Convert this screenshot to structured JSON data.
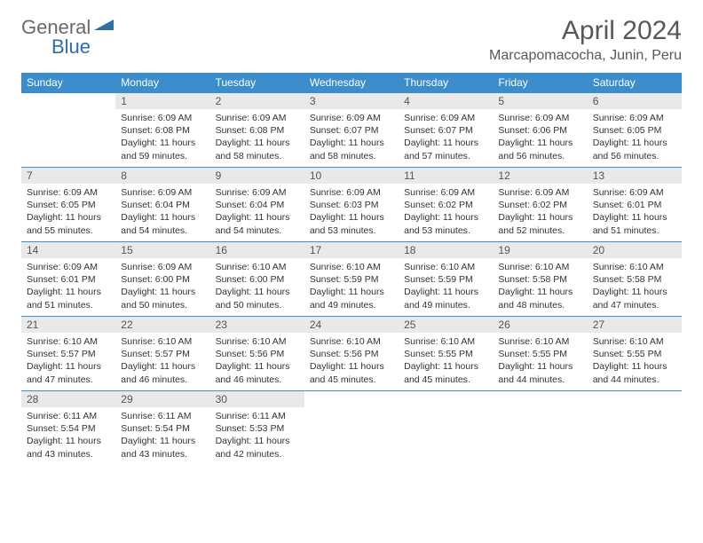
{
  "logo": {
    "text1": "General",
    "text2": "Blue"
  },
  "title": "April 2024",
  "location": "Marcapomacocha, Junin, Peru",
  "colors": {
    "header_bg": "#3b8dcb",
    "header_text": "#ffffff",
    "daynum_bg": "#e9e9e9",
    "daynum_text": "#555555",
    "border": "#3b8dcb",
    "title_text": "#585858",
    "logo_general": "#6a6a6a",
    "logo_blue": "#2f6fa8"
  },
  "weekdays": [
    "Sunday",
    "Monday",
    "Tuesday",
    "Wednesday",
    "Thursday",
    "Friday",
    "Saturday"
  ],
  "weeks": [
    [
      {
        "empty": true
      },
      {
        "n": "1",
        "sr": "Sunrise: 6:09 AM",
        "ss": "Sunset: 6:08 PM",
        "dl": "Daylight: 11 hours and 59 minutes."
      },
      {
        "n": "2",
        "sr": "Sunrise: 6:09 AM",
        "ss": "Sunset: 6:08 PM",
        "dl": "Daylight: 11 hours and 58 minutes."
      },
      {
        "n": "3",
        "sr": "Sunrise: 6:09 AM",
        "ss": "Sunset: 6:07 PM",
        "dl": "Daylight: 11 hours and 58 minutes."
      },
      {
        "n": "4",
        "sr": "Sunrise: 6:09 AM",
        "ss": "Sunset: 6:07 PM",
        "dl": "Daylight: 11 hours and 57 minutes."
      },
      {
        "n": "5",
        "sr": "Sunrise: 6:09 AM",
        "ss": "Sunset: 6:06 PM",
        "dl": "Daylight: 11 hours and 56 minutes."
      },
      {
        "n": "6",
        "sr": "Sunrise: 6:09 AM",
        "ss": "Sunset: 6:05 PM",
        "dl": "Daylight: 11 hours and 56 minutes."
      }
    ],
    [
      {
        "n": "7",
        "sr": "Sunrise: 6:09 AM",
        "ss": "Sunset: 6:05 PM",
        "dl": "Daylight: 11 hours and 55 minutes."
      },
      {
        "n": "8",
        "sr": "Sunrise: 6:09 AM",
        "ss": "Sunset: 6:04 PM",
        "dl": "Daylight: 11 hours and 54 minutes."
      },
      {
        "n": "9",
        "sr": "Sunrise: 6:09 AM",
        "ss": "Sunset: 6:04 PM",
        "dl": "Daylight: 11 hours and 54 minutes."
      },
      {
        "n": "10",
        "sr": "Sunrise: 6:09 AM",
        "ss": "Sunset: 6:03 PM",
        "dl": "Daylight: 11 hours and 53 minutes."
      },
      {
        "n": "11",
        "sr": "Sunrise: 6:09 AM",
        "ss": "Sunset: 6:02 PM",
        "dl": "Daylight: 11 hours and 53 minutes."
      },
      {
        "n": "12",
        "sr": "Sunrise: 6:09 AM",
        "ss": "Sunset: 6:02 PM",
        "dl": "Daylight: 11 hours and 52 minutes."
      },
      {
        "n": "13",
        "sr": "Sunrise: 6:09 AM",
        "ss": "Sunset: 6:01 PM",
        "dl": "Daylight: 11 hours and 51 minutes."
      }
    ],
    [
      {
        "n": "14",
        "sr": "Sunrise: 6:09 AM",
        "ss": "Sunset: 6:01 PM",
        "dl": "Daylight: 11 hours and 51 minutes."
      },
      {
        "n": "15",
        "sr": "Sunrise: 6:09 AM",
        "ss": "Sunset: 6:00 PM",
        "dl": "Daylight: 11 hours and 50 minutes."
      },
      {
        "n": "16",
        "sr": "Sunrise: 6:10 AM",
        "ss": "Sunset: 6:00 PM",
        "dl": "Daylight: 11 hours and 50 minutes."
      },
      {
        "n": "17",
        "sr": "Sunrise: 6:10 AM",
        "ss": "Sunset: 5:59 PM",
        "dl": "Daylight: 11 hours and 49 minutes."
      },
      {
        "n": "18",
        "sr": "Sunrise: 6:10 AM",
        "ss": "Sunset: 5:59 PM",
        "dl": "Daylight: 11 hours and 49 minutes."
      },
      {
        "n": "19",
        "sr": "Sunrise: 6:10 AM",
        "ss": "Sunset: 5:58 PM",
        "dl": "Daylight: 11 hours and 48 minutes."
      },
      {
        "n": "20",
        "sr": "Sunrise: 6:10 AM",
        "ss": "Sunset: 5:58 PM",
        "dl": "Daylight: 11 hours and 47 minutes."
      }
    ],
    [
      {
        "n": "21",
        "sr": "Sunrise: 6:10 AM",
        "ss": "Sunset: 5:57 PM",
        "dl": "Daylight: 11 hours and 47 minutes."
      },
      {
        "n": "22",
        "sr": "Sunrise: 6:10 AM",
        "ss": "Sunset: 5:57 PM",
        "dl": "Daylight: 11 hours and 46 minutes."
      },
      {
        "n": "23",
        "sr": "Sunrise: 6:10 AM",
        "ss": "Sunset: 5:56 PM",
        "dl": "Daylight: 11 hours and 46 minutes."
      },
      {
        "n": "24",
        "sr": "Sunrise: 6:10 AM",
        "ss": "Sunset: 5:56 PM",
        "dl": "Daylight: 11 hours and 45 minutes."
      },
      {
        "n": "25",
        "sr": "Sunrise: 6:10 AM",
        "ss": "Sunset: 5:55 PM",
        "dl": "Daylight: 11 hours and 45 minutes."
      },
      {
        "n": "26",
        "sr": "Sunrise: 6:10 AM",
        "ss": "Sunset: 5:55 PM",
        "dl": "Daylight: 11 hours and 44 minutes."
      },
      {
        "n": "27",
        "sr": "Sunrise: 6:10 AM",
        "ss": "Sunset: 5:55 PM",
        "dl": "Daylight: 11 hours and 44 minutes."
      }
    ],
    [
      {
        "n": "28",
        "sr": "Sunrise: 6:11 AM",
        "ss": "Sunset: 5:54 PM",
        "dl": "Daylight: 11 hours and 43 minutes."
      },
      {
        "n": "29",
        "sr": "Sunrise: 6:11 AM",
        "ss": "Sunset: 5:54 PM",
        "dl": "Daylight: 11 hours and 43 minutes."
      },
      {
        "n": "30",
        "sr": "Sunrise: 6:11 AM",
        "ss": "Sunset: 5:53 PM",
        "dl": "Daylight: 11 hours and 42 minutes."
      },
      {
        "empty": true
      },
      {
        "empty": true
      },
      {
        "empty": true
      },
      {
        "empty": true
      }
    ]
  ]
}
